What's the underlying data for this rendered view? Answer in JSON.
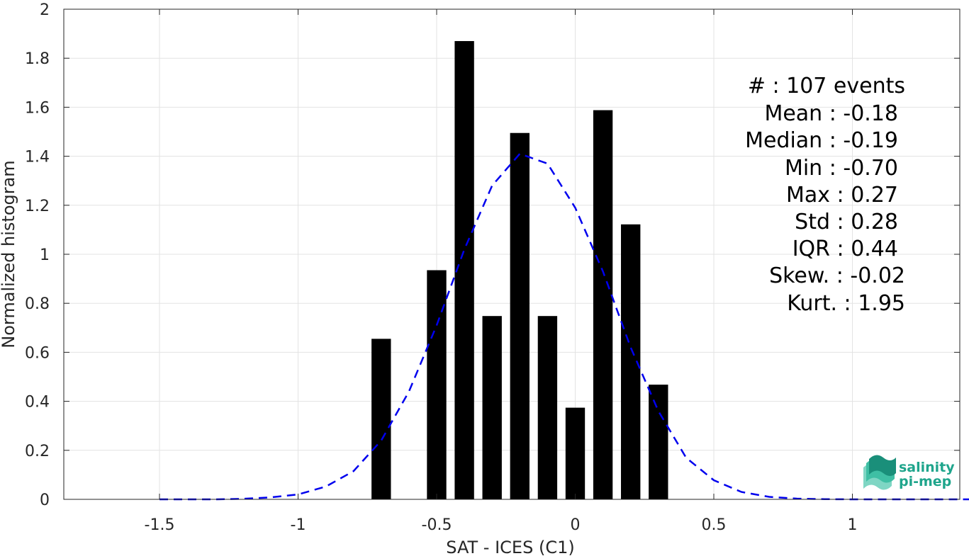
{
  "chart_data": {
    "type": "bar",
    "xlabel": "SAT - ICES (C1)",
    "ylabel": "Normalized histogram",
    "xlim": [
      -1.5,
      1.5
    ],
    "ylim": [
      0,
      2
    ],
    "grid": true,
    "xticks": [
      -1.5,
      -1,
      -0.5,
      0,
      0.5,
      1,
      1.5
    ],
    "xtick_labels": [
      "-1.5",
      "-1",
      "-0.5",
      "0",
      "0.5",
      "1",
      "1.5"
    ],
    "yticks": [
      0,
      0.2,
      0.4,
      0.6,
      0.8,
      1,
      1.2,
      1.4,
      1.6,
      1.8,
      2
    ],
    "ytick_labels": [
      "0",
      "0.2",
      "0.4",
      "0.6",
      "0.8",
      "1",
      "1.2",
      "1.4",
      "1.6",
      "1.8",
      "2"
    ],
    "bar_width": 0.07,
    "bar_color": "#000000",
    "bars": [
      {
        "x": -0.7,
        "y": 0.655
      },
      {
        "x": -0.5,
        "y": 0.935
      },
      {
        "x": -0.4,
        "y": 1.87
      },
      {
        "x": -0.3,
        "y": 0.748
      },
      {
        "x": -0.2,
        "y": 1.495
      },
      {
        "x": -0.1,
        "y": 0.748
      },
      {
        "x": 0.0,
        "y": 0.374
      },
      {
        "x": 0.1,
        "y": 1.588
      },
      {
        "x": 0.2,
        "y": 1.122
      },
      {
        "x": 0.3,
        "y": 0.468
      }
    ],
    "fit_curve": {
      "color": "#0000ee",
      "style": "dashed",
      "x": [
        -1.5,
        -1.4,
        -1.3,
        -1.2,
        -1.1,
        -1.0,
        -0.9,
        -0.8,
        -0.7,
        -0.6,
        -0.5,
        -0.4,
        -0.3,
        -0.2,
        -0.1,
        0.0,
        0.1,
        0.2,
        0.3,
        0.4,
        0.5,
        0.6,
        0.7,
        0.8,
        0.9,
        1.0,
        1.1,
        1.2,
        1.3,
        1.4,
        1.5
      ],
      "y": [
        0.0,
        0.0,
        0.0,
        0.002,
        0.008,
        0.02,
        0.052,
        0.115,
        0.24,
        0.44,
        0.71,
        1.02,
        1.28,
        1.41,
        1.37,
        1.19,
        0.93,
        0.62,
        0.36,
        0.17,
        0.078,
        0.03,
        0.01,
        0.003,
        0.001,
        0.0,
        0.0,
        0.0,
        0.0,
        0.0,
        0.0
      ]
    },
    "stats_lines": [
      "#  : 107 events",
      "Mean : -0.18",
      "Median : -0.19",
      "Min : -0.70",
      "Max : 0.27",
      "Std : 0.28",
      "IQR : 0.44",
      "Skew. : -0.02",
      "Kurt. : 1.95"
    ]
  },
  "logo": {
    "line1": "salinity",
    "line2": "pi-mep",
    "color": "#1fa58c"
  }
}
